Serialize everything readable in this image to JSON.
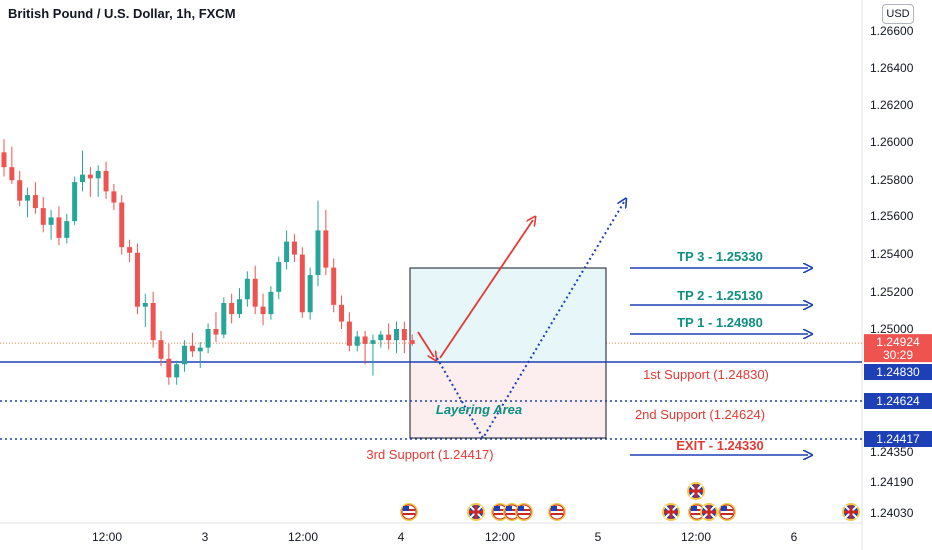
{
  "header": {
    "title": "British Pound / U.S. Dollar, 1h, FXCM",
    "currency": "USD"
  },
  "chart_data": {
    "type": "candlestick",
    "y_axis": {
      "ticks": [
        1.266,
        1.264,
        1.262,
        1.26,
        1.258,
        1.256,
        1.254,
        1.252,
        1.25,
        1.2435,
        1.2419,
        1.2403
      ],
      "tick_labels": [
        "1.26600",
        "1.26400",
        "1.26200",
        "1.26000",
        "1.25800",
        "1.25600",
        "1.25400",
        "1.25200",
        "1.25000",
        "1.24350",
        "1.24190",
        "1.24030"
      ]
    },
    "x_axis": {
      "labels": [
        "12:00",
        "3",
        "12:00",
        "4",
        "12:00",
        "5",
        "12:00",
        "6"
      ]
    },
    "price_labels": {
      "current_price": "1.24924",
      "countdown": "30:29",
      "support1": "1.24830",
      "support2": "1.24624",
      "support3": "1.24417"
    },
    "levels": {
      "current": 1.24924,
      "support1": 1.2483,
      "support2": 1.24624,
      "support3": 1.24417
    },
    "annotations": {
      "tp3": "TP 3 - 1.25330",
      "tp2": "TP 2 - 1.25130",
      "tp1": "TP 1 - 1.24980",
      "exit": "EXIT - 1.24330",
      "support1": "1st Support (1.24830)",
      "support2": "2nd Support (1.24624)",
      "support3": "3rd Support (1.24417)",
      "layering": "Layering Area"
    },
    "candles": [
      [
        1.2595,
        1.2602,
        1.2582,
        1.2587
      ],
      [
        1.2587,
        1.2598,
        1.2578,
        1.258
      ],
      [
        1.258,
        1.2585,
        1.2566,
        1.2569
      ],
      [
        1.2569,
        1.2576,
        1.256,
        1.2572
      ],
      [
        1.2572,
        1.2579,
        1.2562,
        1.2565
      ],
      [
        1.2565,
        1.2571,
        1.2552,
        1.2556
      ],
      [
        1.2556,
        1.2564,
        1.2548,
        1.256
      ],
      [
        1.256,
        1.2566,
        1.2545,
        1.2549
      ],
      [
        1.2549,
        1.2562,
        1.2546,
        1.2558
      ],
      [
        1.2558,
        1.2582,
        1.2556,
        1.2579
      ],
      [
        1.2579,
        1.2596,
        1.2574,
        1.2583
      ],
      [
        1.2583,
        1.2587,
        1.2571,
        1.2581
      ],
      [
        1.2581,
        1.2588,
        1.2571,
        1.2585
      ],
      [
        1.2585,
        1.259,
        1.257,
        1.2574
      ],
      [
        1.2574,
        1.2578,
        1.2564,
        1.2568
      ],
      [
        1.2568,
        1.2572,
        1.254,
        1.2544
      ],
      [
        1.2544,
        1.2548,
        1.2536,
        1.2541
      ],
      [
        1.2541,
        1.2546,
        1.2508,
        1.2512
      ],
      [
        1.2512,
        1.2519,
        1.2501,
        1.2514
      ],
      [
        1.2514,
        1.252,
        1.249,
        1.2494
      ],
      [
        1.2494,
        1.2499,
        1.248,
        1.2484
      ],
      [
        1.2484,
        1.2492,
        1.247,
        1.2474
      ],
      [
        1.2474,
        1.2483,
        1.247,
        1.2481
      ],
      [
        1.2481,
        1.2494,
        1.2477,
        1.2491
      ],
      [
        1.2491,
        1.2498,
        1.2485,
        1.2488
      ],
      [
        1.2488,
        1.2493,
        1.2479,
        1.249
      ],
      [
        1.249,
        1.2503,
        1.2487,
        1.25
      ],
      [
        1.25,
        1.2509,
        1.2493,
        1.2497
      ],
      [
        1.2497,
        1.2517,
        1.2495,
        1.2514
      ],
      [
        1.2514,
        1.2519,
        1.2503,
        1.2508
      ],
      [
        1.2508,
        1.2522,
        1.2506,
        1.2516
      ],
      [
        1.2516,
        1.2531,
        1.2512,
        1.2527
      ],
      [
        1.2527,
        1.2534,
        1.2508,
        1.2512
      ],
      [
        1.2512,
        1.2519,
        1.2502,
        1.2508
      ],
      [
        1.2508,
        1.2523,
        1.2505,
        1.252
      ],
      [
        1.252,
        1.2539,
        1.2516,
        1.2536
      ],
      [
        1.2536,
        1.2553,
        1.2532,
        1.2547
      ],
      [
        1.2547,
        1.2551,
        1.2536,
        1.254
      ],
      [
        1.254,
        1.2544,
        1.2506,
        1.2509
      ],
      [
        1.2509,
        1.2533,
        1.2505,
        1.2529
      ],
      [
        1.2529,
        1.2569,
        1.2523,
        1.2553
      ],
      [
        1.2553,
        1.2564,
        1.2529,
        1.2533
      ],
      [
        1.2533,
        1.2538,
        1.2509,
        1.2513
      ],
      [
        1.2513,
        1.2518,
        1.25,
        1.2504
      ],
      [
        1.2504,
        1.2509,
        1.2488,
        1.2491
      ],
      [
        1.2491,
        1.2499,
        1.2488,
        1.2496
      ],
      [
        1.2496,
        1.2499,
        1.2481,
        1.2492
      ],
      [
        1.2492,
        1.2497,
        1.2475,
        1.2494
      ],
      [
        1.2494,
        1.2499,
        1.249,
        1.2497
      ],
      [
        1.2497,
        1.2503,
        1.2489,
        1.2494
      ],
      [
        1.2494,
        1.2504,
        1.2487,
        1.25
      ],
      [
        1.25,
        1.2504,
        1.2487,
        1.2494
      ],
      [
        1.2494,
        1.2497,
        1.2491,
        1.2492
      ]
    ]
  }
}
